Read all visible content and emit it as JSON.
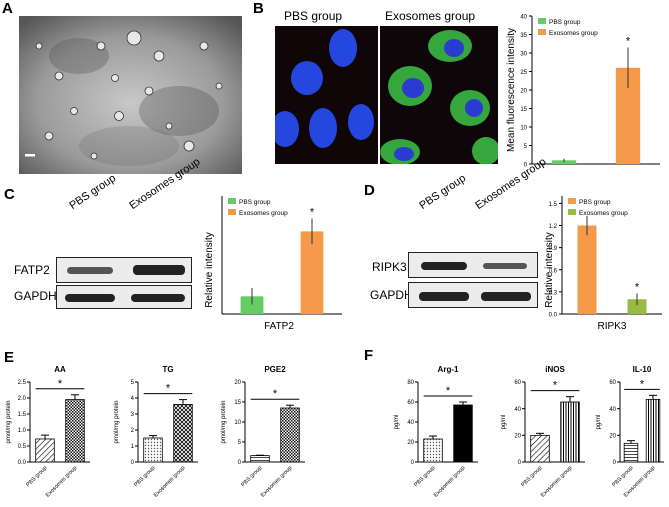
{
  "panels": {
    "A": {
      "label": "A"
    },
    "B": {
      "label": "B",
      "pbs_title": "PBS group",
      "exo_title": "Exosomes group",
      "chart": {
        "type": "bar",
        "categories": [
          "PBS group",
          "Exosomes group"
        ],
        "values": [
          1.0,
          26.0
        ],
        "errors": [
          0.5,
          5.5
        ],
        "colors": [
          "#66cc66",
          "#f59a4a"
        ],
        "ylabel": "Mean fluorescence intensity",
        "ylim": [
          0,
          40
        ],
        "yticks": [
          "0",
          "5",
          "10",
          "15",
          "20",
          "25",
          "30",
          "35",
          "40"
        ],
        "legend": [
          "PBS group",
          "Exosomes group"
        ],
        "sig": [
          "",
          "*"
        ]
      }
    },
    "C": {
      "label": "C",
      "lanes": [
        "PBS group",
        "Exosomes group"
      ],
      "rows": [
        "FATP2",
        "GAPDH"
      ],
      "chart": {
        "type": "bar",
        "categories": [
          "PBS group",
          "Exosomes group"
        ],
        "values": [
          0.15,
          0.7
        ],
        "errors": [
          0.07,
          0.11
        ],
        "colors": [
          "#66cc66",
          "#f59a4a"
        ],
        "ylabel": "Relative intensity",
        "xlabel": "FATP2",
        "ylim": [
          0,
          1.0
        ],
        "legend": [
          "PBS group",
          "Exosomes group"
        ],
        "sig": [
          "",
          "*"
        ]
      }
    },
    "D": {
      "label": "D",
      "lanes": [
        "PBS group",
        "Exosomes group"
      ],
      "rows": [
        "RIPK3",
        "GAPDH"
      ],
      "chart": {
        "type": "bar",
        "categories": [
          "PBS group",
          "Exosomes group"
        ],
        "values": [
          1.2,
          0.2
        ],
        "errors": [
          0.13,
          0.08
        ],
        "colors": [
          "#f59a4a",
          "#99bb44"
        ],
        "ylabel": "Relative intensity",
        "xlabel": "RIPK3",
        "ylim": [
          0,
          1.6
        ],
        "yticks": [
          "0.0",
          "0.3",
          "0.6",
          "0.9",
          "1.2",
          "1.5"
        ],
        "legend": [
          "PBS group",
          "Exosomes group"
        ],
        "sig": [
          "",
          "*"
        ]
      }
    },
    "E": {
      "label": "E"
    },
    "F": {
      "label": "F"
    }
  },
  "chart_data": [
    {
      "type": "bar",
      "title": "AA",
      "ylabel": "pmol/mg protein",
      "categories": [
        "PBS group",
        "Exosomes group"
      ],
      "values": [
        0.72,
        1.95
      ],
      "errors": [
        0.12,
        0.15
      ],
      "ylim": [
        0,
        2.5
      ],
      "yticks": [
        "0.0",
        "0.5",
        "1.0",
        "1.5",
        "2.0",
        "2.5"
      ],
      "sig": "*"
    },
    {
      "type": "bar",
      "title": "TG",
      "ylabel": "pmol/mg protein",
      "categories": [
        "PBS group",
        "Exosomes group"
      ],
      "values": [
        1.5,
        3.6
      ],
      "errors": [
        0.15,
        0.3
      ],
      "ylim": [
        0,
        5
      ],
      "yticks": [
        "0",
        "1",
        "2",
        "3",
        "4",
        "5"
      ],
      "sig": "*"
    },
    {
      "type": "bar",
      "title": "PGE2",
      "ylabel": "pmol/mg protein",
      "categories": [
        "PBS group",
        "Exosomes group"
      ],
      "values": [
        1.6,
        13.5
      ],
      "errors": [
        0.1,
        0.7
      ],
      "ylim": [
        0,
        20
      ],
      "yticks": [
        "0",
        "5",
        "10",
        "15",
        "20"
      ],
      "sig": "*"
    },
    {
      "type": "bar",
      "title": "Arg-1",
      "ylabel": "pg/ml",
      "categories": [
        "PBS group",
        "Exosomes group"
      ],
      "values": [
        23,
        57
      ],
      "errors": [
        3,
        3
      ],
      "ylim": [
        0,
        80
      ],
      "yticks": [
        "0",
        "20",
        "40",
        "60",
        "80"
      ],
      "sig": "*"
    },
    {
      "type": "bar",
      "title": "iNOS",
      "ylabel": "pg/ml",
      "categories": [
        "PBS group",
        "Exosomes group"
      ],
      "values": [
        20,
        45
      ],
      "errors": [
        1.5,
        4
      ],
      "ylim": [
        0,
        60
      ],
      "yticks": [
        "0",
        "20",
        "40",
        "60"
      ],
      "sig": "*"
    },
    {
      "type": "bar",
      "title": "IL-10",
      "ylabel": "pg/ml",
      "categories": [
        "PBS group",
        "Exosomes group"
      ],
      "values": [
        14,
        47
      ],
      "errors": [
        2,
        3
      ],
      "ylim": [
        0,
        60
      ],
      "yticks": [
        "0",
        "20",
        "40",
        "60"
      ],
      "sig": "*"
    }
  ]
}
